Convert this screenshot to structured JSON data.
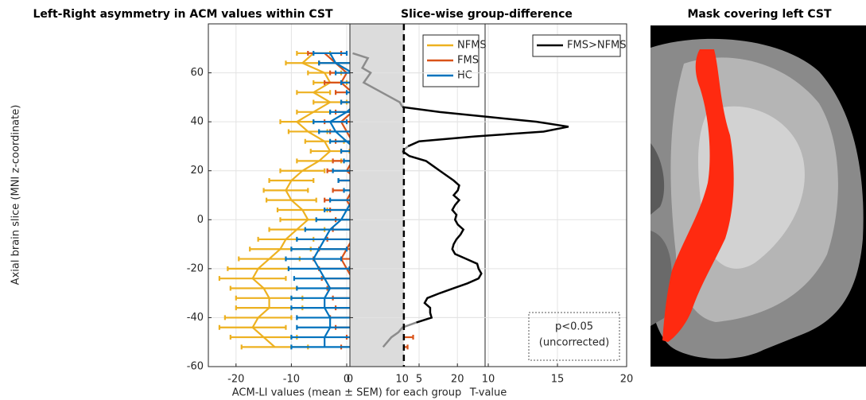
{
  "chart_data": [
    {
      "type": "errorbar-line",
      "title": "Left-Right asymmetry in ACM values within CST",
      "xlabel": "ACM-LI values (mean ± SEM) for each group",
      "ylabel": "Axial brain slice (MNI z-coordinate)",
      "xlim": [
        -25,
        25
      ],
      "xticks": [
        -20,
        -10,
        0,
        10,
        20
      ],
      "ylim": [
        -60,
        80
      ],
      "yticks": [
        -60,
        -40,
        -20,
        0,
        20,
        40,
        60
      ],
      "grid": true,
      "legend": "top-right",
      "y": [
        68,
        64,
        60,
        56,
        52,
        48,
        44,
        40,
        36,
        32,
        28,
        24,
        20,
        16,
        12,
        8,
        4,
        0,
        -4,
        -8,
        -12,
        -16,
        -20,
        -24,
        -28,
        -32,
        -36,
        -40,
        -44,
        -48,
        -52
      ],
      "series": [
        {
          "name": "NFMS",
          "color": "#edb120",
          "values": [
            -6,
            -8,
            -4,
            -3,
            -6,
            -3,
            -6,
            -9,
            -7,
            -4,
            -3,
            -5,
            -8,
            -10,
            -11,
            -10,
            -8,
            -7,
            -9,
            -11,
            -12,
            -14,
            -16,
            -17,
            -15,
            -14,
            -14,
            -16,
            -17,
            -15,
            -13
          ],
          "errors": [
            3,
            3,
            3,
            3,
            3,
            3,
            3,
            3,
            3.5,
            3.5,
            3.5,
            4,
            4,
            4,
            4,
            4.5,
            4.5,
            5,
            5,
            5,
            5.5,
            5.5,
            5.5,
            6,
            6,
            6,
            6,
            6,
            6,
            6,
            6
          ]
        },
        {
          "name": "FMS",
          "color": "#d95319",
          "values": [
            -4,
            -2,
            0,
            -1,
            1,
            2,
            1,
            -1,
            0,
            1,
            2,
            1,
            0,
            2,
            1,
            0,
            1,
            2,
            2,
            1,
            0,
            -1,
            0,
            1,
            2,
            3,
            4,
            3,
            4,
            6,
            5
          ],
          "errors": [
            3,
            3,
            3,
            3,
            3,
            3,
            3,
            3,
            3,
            3,
            3,
            3.5,
            3.5,
            3.5,
            3.5,
            4,
            4,
            4,
            4.5,
            4.5,
            5,
            5,
            5,
            5.5,
            5.5,
            5.5,
            6,
            6,
            6,
            6,
            6
          ]
        },
        {
          "name": "HC",
          "color": "#0072bd",
          "values": [
            -3,
            -2,
            1,
            2,
            3,
            2,
            0,
            -3,
            -2,
            0,
            2,
            3,
            1,
            2,
            3,
            1,
            0,
            -1,
            -3,
            -4,
            -5,
            -6,
            -5,
            -4,
            -3,
            -4,
            -4,
            -3,
            -3,
            -4,
            -4
          ],
          "errors": [
            3,
            3,
            3,
            3,
            3,
            3,
            3,
            3,
            3,
            3,
            3,
            3.5,
            3.5,
            3.5,
            3.5,
            4,
            4,
            4.5,
            4.5,
            5,
            5,
            5,
            5.5,
            5.5,
            6,
            6,
            6,
            6,
            6,
            6,
            6
          ]
        }
      ]
    },
    {
      "type": "threshold-line",
      "title": "Slice-wise group-difference",
      "xlabel": "T-value",
      "xlim": [
        0,
        20
      ],
      "xticks": [
        0,
        5,
        10,
        15,
        20
      ],
      "ylim": [
        -60,
        80
      ],
      "yticks": [
        -60,
        -40,
        -20,
        0,
        20,
        40,
        60
      ],
      "grid": true,
      "legend": "top-right",
      "threshold": 3.9,
      "shade_color": "#dcdcdc",
      "below_color": "#8c8c8c",
      "annotation": [
        "p<0.05",
        "(uncorrected)"
      ],
      "y": [
        68,
        66,
        62,
        60,
        56,
        52,
        48,
        46,
        44,
        42,
        40,
        38,
        36,
        34,
        32,
        30,
        28,
        26,
        24,
        22,
        20,
        18,
        16,
        14,
        12,
        10,
        8,
        6,
        4,
        2,
        0,
        -2,
        -4,
        -6,
        -8,
        -10,
        -12,
        -14,
        -16,
        -18,
        -20,
        -22,
        -24,
        -26,
        -28,
        -30,
        -32,
        -34,
        -36,
        -38,
        -40,
        -42,
        -44,
        -46,
        -48,
        -50,
        -52
      ],
      "series": [
        {
          "name": "FMS>NFMS",
          "color": "#000000",
          "values": [
            0.2,
            1.3,
            0.9,
            1.5,
            1.0,
            2.3,
            3.6,
            3.8,
            6.5,
            10,
            13.5,
            15.8,
            14,
            9,
            5,
            4.2,
            3.8,
            4.3,
            5.5,
            6.0,
            6.5,
            7.0,
            7.5,
            7.9,
            7.8,
            7.5,
            7.9,
            7.6,
            7.4,
            7.7,
            7.6,
            7.8,
            8.2,
            8.0,
            7.7,
            7.5,
            7.4,
            7.6,
            8.4,
            9.2,
            9.3,
            9.5,
            9.3,
            8.5,
            7.5,
            6.5,
            5.6,
            5.4,
            5.8,
            5.8,
            5.9,
            4.8,
            3.8,
            3.5,
            3.0,
            2.7,
            2.4
          ]
        }
      ]
    },
    {
      "type": "image",
      "title": "Mask covering left CST"
    }
  ]
}
